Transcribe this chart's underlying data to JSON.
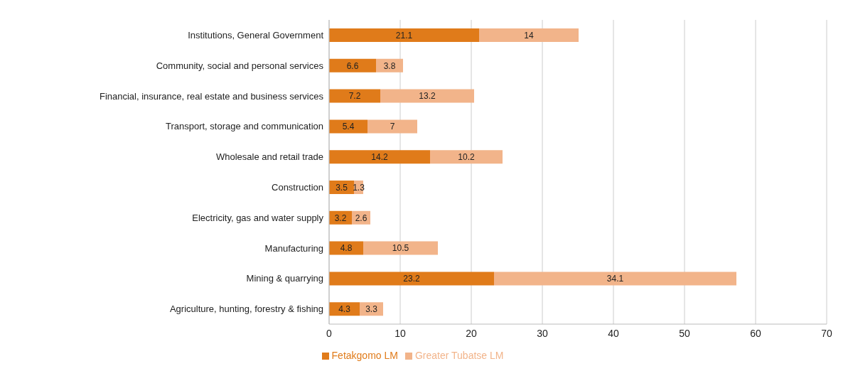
{
  "chart_data": {
    "type": "bar",
    "orientation": "horizontal",
    "stacked": true,
    "categories": [
      "Institutions, General Government",
      "Community, social and personal services",
      "Financial, insurance, real estate and business services",
      "Transport, storage and communication",
      "Wholesale and retail trade",
      "Construction",
      "Electricity, gas and water supply",
      "Manufacturing",
      "Mining & quarrying",
      "Agriculture, hunting, forestry & fishing"
    ],
    "series": [
      {
        "name": "Fetakgomo LM",
        "color": "#e07b1a",
        "values": [
          21.1,
          6.6,
          7.2,
          5.4,
          14.2,
          3.5,
          3.2,
          4.8,
          23.2,
          4.3
        ]
      },
      {
        "name": "Greater Tubatse LM",
        "color": "#f2b48a",
        "values": [
          14,
          3.8,
          13.2,
          7,
          10.2,
          1.3,
          2.6,
          10.5,
          34.1,
          3.3
        ]
      }
    ],
    "xlim": [
      0,
      70
    ],
    "xticks": [
      0,
      10,
      20,
      30,
      40,
      50,
      60,
      70
    ],
    "grid": "x",
    "legend": "bottom",
    "data_labels": true
  }
}
